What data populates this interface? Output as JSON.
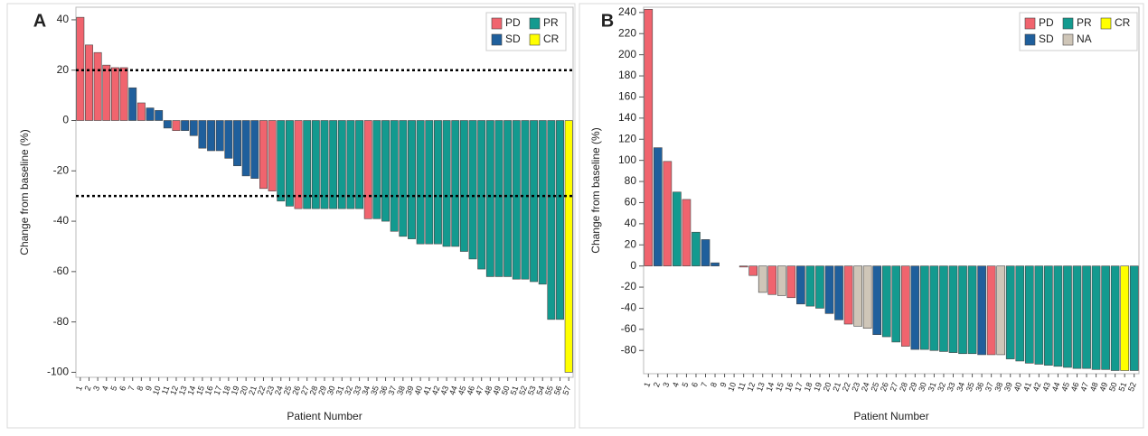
{
  "chart_data": [
    {
      "type": "bar",
      "panel": "A",
      "x_label": "Patient Number",
      "y_label": "Change from baseline (%)",
      "categories": [
        1,
        2,
        3,
        4,
        5,
        6,
        7,
        8,
        9,
        10,
        11,
        12,
        13,
        14,
        15,
        16,
        17,
        18,
        19,
        20,
        21,
        22,
        23,
        24,
        25,
        26,
        27,
        28,
        29,
        30,
        31,
        32,
        33,
        34,
        35,
        36,
        37,
        38,
        39,
        40,
        41,
        42,
        43,
        44,
        45,
        46,
        47,
        48,
        49,
        50,
        51,
        52,
        53,
        54,
        55,
        56,
        57
      ],
      "values": [
        41,
        30,
        27,
        22,
        21,
        21,
        13,
        7,
        5,
        4,
        -3,
        -4,
        -4,
        -6,
        -11,
        -12,
        -12,
        -15,
        -18,
        -22,
        -23,
        -27,
        -28,
        -32,
        -34,
        -35,
        -35,
        -35,
        -35,
        -35,
        -35,
        -35,
        -35,
        -39,
        -39,
        -40,
        -44,
        -46,
        -47,
        -49,
        -49,
        -49,
        -50,
        -50,
        -52,
        -55,
        -59,
        -62,
        -62,
        -62,
        -63,
        -63,
        -64,
        -65,
        -79,
        -79,
        -100
      ],
      "status": [
        "PD",
        "PD",
        "PD",
        "PD",
        "PD",
        "PD",
        "SD",
        "PD",
        "SD",
        "SD",
        "SD",
        "PD",
        "SD",
        "SD",
        "SD",
        "SD",
        "SD",
        "SD",
        "SD",
        "SD",
        "SD",
        "PD",
        "PD",
        "PR",
        "PR",
        "PD",
        "PR",
        "PR",
        "PR",
        "PR",
        "PR",
        "PR",
        "PR",
        "PD",
        "PR",
        "PR",
        "PR",
        "PR",
        "PR",
        "PR",
        "PR",
        "PR",
        "PR",
        "PR",
        "PR",
        "PR",
        "PR",
        "PR",
        "PR",
        "PR",
        "PR",
        "PR",
        "PR",
        "PR",
        "PR",
        "PR",
        "CR"
      ],
      "legend": [
        {
          "name": "PD",
          "color": "#f0646e"
        },
        {
          "name": "PR",
          "color": "#139a8f"
        },
        {
          "name": "SD",
          "color": "#1f5f9c"
        },
        {
          "name": "CR",
          "color": "#ffff00"
        }
      ],
      "reference_lines": [
        20,
        -30
      ],
      "ylim": [
        -102,
        45
      ],
      "yticks": [
        40,
        20,
        0,
        -20,
        -40,
        -60,
        -80,
        -100
      ]
    },
    {
      "type": "bar",
      "panel": "B",
      "x_label": "Patient Number",
      "y_label": "Change from baseline (%)",
      "categories": [
        1,
        2,
        3,
        4,
        5,
        6,
        7,
        8,
        9,
        10,
        11,
        12,
        13,
        14,
        15,
        16,
        17,
        18,
        19,
        20,
        21,
        22,
        23,
        24,
        25,
        26,
        27,
        28,
        29,
        30,
        31,
        32,
        33,
        34,
        35,
        36,
        37,
        38,
        39,
        40,
        41,
        42,
        43,
        44,
        45,
        46,
        47,
        48,
        49,
        50,
        51,
        52
      ],
      "values": [
        243,
        112,
        99,
        70,
        63,
        32,
        25,
        3,
        null,
        null,
        -1,
        -9,
        -25,
        -27,
        -28,
        -30,
        -36,
        -38,
        -40,
        -45,
        -51,
        -55,
        -57,
        -59,
        -65,
        -67,
        -72,
        -76,
        -79,
        -79,
        -80,
        -81,
        -82,
        -83,
        -83,
        -84,
        -84,
        -84,
        -88,
        -90,
        -92,
        -93,
        -94,
        -95,
        -96,
        -97,
        -97,
        -98,
        -98,
        -99,
        -99,
        -99
      ],
      "status": [
        "PD",
        "SD",
        "PD",
        "PR",
        "PD",
        "PR",
        "SD",
        "SD",
        null,
        null,
        "PD",
        "PD",
        "NA",
        "PD",
        "NA",
        "PD",
        "SD",
        "PR",
        "PR",
        "SD",
        "SD",
        "PD",
        "NA",
        "NA",
        "SD",
        "PR",
        "PR",
        "PD",
        "SD",
        "PR",
        "PR",
        "PR",
        "PR",
        "PR",
        "PR",
        "SD",
        "PD",
        "NA",
        "PR",
        "PR",
        "PR",
        "PR",
        "PR",
        "PR",
        "PR",
        "PR",
        "PR",
        "PR",
        "PR",
        "PR",
        "CR",
        "PR"
      ],
      "legend": [
        {
          "name": "PD",
          "color": "#f0646e"
        },
        {
          "name": "PR",
          "color": "#139a8f"
        },
        {
          "name": "CR",
          "color": "#ffff00"
        },
        {
          "name": "SD",
          "color": "#1f5f9c"
        },
        {
          "name": "NA",
          "color": "#cfc6b8"
        }
      ],
      "ylim": [
        -102,
        245
      ],
      "yticks": [
        240,
        220,
        200,
        180,
        160,
        140,
        120,
        100,
        80,
        60,
        40,
        20,
        0,
        -20,
        -40,
        -60,
        -80
      ]
    }
  ]
}
